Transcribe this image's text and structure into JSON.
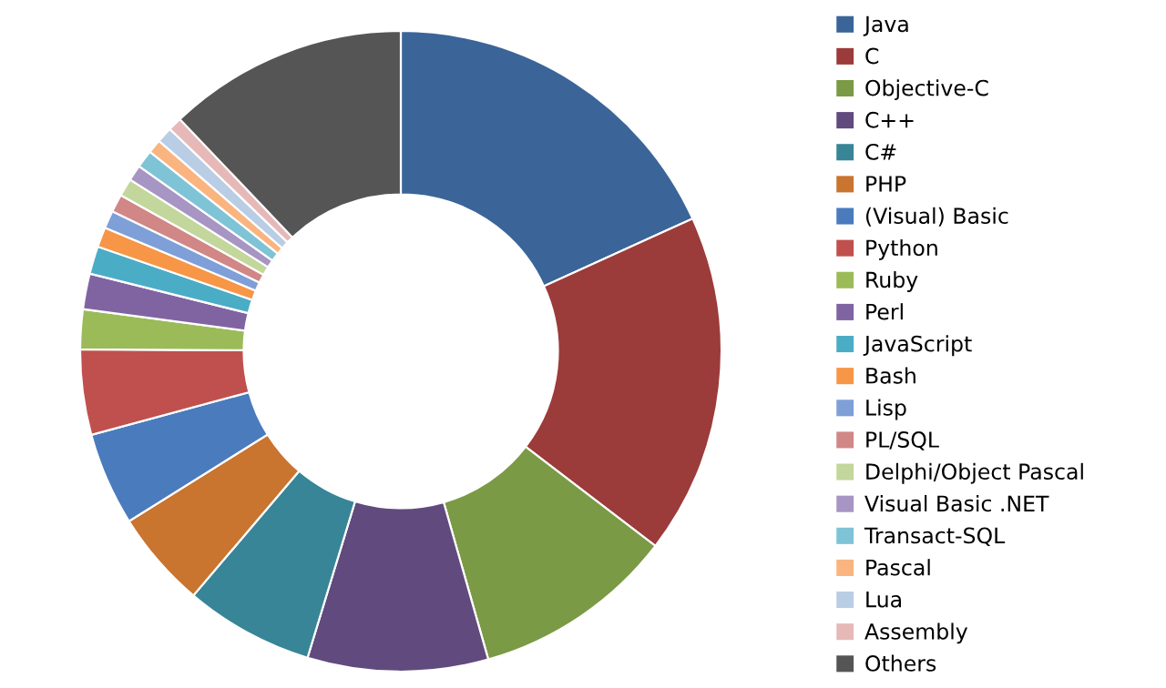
{
  "chart_data": {
    "type": "donut",
    "categories": [
      "Java",
      "C",
      "Objective-C",
      "C++",
      "C#",
      "PHP",
      "(Visual) Basic",
      "Python",
      "Ruby",
      "Perl",
      "JavaScript",
      "Bash",
      "Lisp",
      "PL/SQL",
      "Delphi/Object Pascal",
      "Visual Basic .NET",
      "Transact-SQL",
      "Pascal",
      "Lua",
      "Assembly",
      "Others"
    ],
    "values": [
      18.2,
      17.2,
      10.2,
      9.1,
      6.5,
      4.9,
      4.7,
      4.3,
      2.0,
      1.8,
      1.4,
      1.0,
      0.9,
      0.9,
      0.9,
      0.8,
      0.9,
      0.7,
      0.8,
      0.7,
      12.1
    ],
    "colors": [
      "#3b6598",
      "#9b3b3a",
      "#7a9a45",
      "#614a7e",
      "#378596",
      "#c9742f",
      "#4a7bbd",
      "#c0504d",
      "#9bbb59",
      "#8064a2",
      "#4bacc6",
      "#f79646",
      "#7f9fd8",
      "#d08785",
      "#c3d69b",
      "#a795c3",
      "#7fc3d6",
      "#fab47f",
      "#b9cde5",
      "#e6b9b8",
      "#555555"
    ],
    "legend": "right"
  }
}
